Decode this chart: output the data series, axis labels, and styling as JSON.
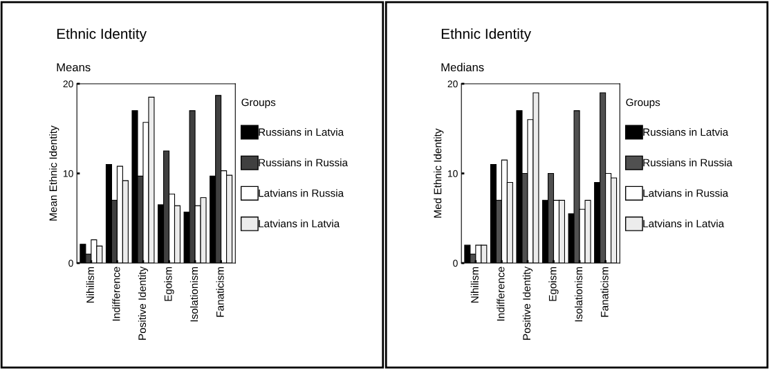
{
  "chart_data": [
    {
      "type": "bar",
      "title": "Ethnic Identity",
      "subtitle": "Means",
      "ylabel": "Mean Ethnic Identity",
      "legend_title": "Groups",
      "legend": "right",
      "categories": [
        "Nihilism",
        "Indifference",
        "Positive Identity",
        "Egoism",
        "Isolationism",
        "Fanaticism"
      ],
      "ylim": [
        0,
        20
      ],
      "yticks": [
        0,
        10,
        20
      ],
      "grid": false,
      "series": [
        {
          "name": "Russians in Latvia",
          "color": "#000000",
          "values": [
            2.1,
            11.0,
            17.0,
            6.5,
            5.7,
            9.7
          ]
        },
        {
          "name": "Russians in Russia",
          "color": "#404040",
          "values": [
            1.0,
            7.0,
            9.7,
            12.5,
            17.0,
            18.7
          ]
        },
        {
          "name": "Latvians in Russia",
          "color": "#ffffff",
          "values": [
            2.6,
            10.8,
            15.7,
            7.7,
            6.4,
            10.3
          ]
        },
        {
          "name": "Latvians in Latvia",
          "color": "#ececec",
          "values": [
            1.9,
            9.2,
            18.5,
            6.4,
            7.3,
            9.8
          ]
        }
      ]
    },
    {
      "type": "bar",
      "title": "Ethnic Identity",
      "subtitle": "Medians",
      "ylabel": "Med Ethnic Identity",
      "legend_title": "Groups",
      "legend": "right",
      "categories": [
        "Nihilism",
        "Indifference",
        "Positive Identity",
        "Egoism",
        "Isolationism",
        "Fanaticism"
      ],
      "ylim": [
        0,
        20
      ],
      "yticks": [
        0,
        10,
        20
      ],
      "grid": false,
      "series": [
        {
          "name": "Russians in Latvia",
          "color": "#000000",
          "values": [
            2.0,
            11.0,
            17.0,
            7.0,
            5.5,
            9.0
          ]
        },
        {
          "name": "Russians in Russia",
          "color": "#505050",
          "values": [
            1.0,
            7.0,
            10.0,
            10.0,
            17.0,
            19.0
          ]
        },
        {
          "name": "Latvians in Russia",
          "color": "#ffffff",
          "values": [
            2.0,
            11.5,
            16.0,
            7.0,
            6.0,
            10.0
          ]
        },
        {
          "name": "Latvians in Latvia",
          "color": "#ececec",
          "values": [
            2.0,
            9.0,
            19.0,
            7.0,
            7.0,
            9.5
          ]
        }
      ]
    }
  ]
}
